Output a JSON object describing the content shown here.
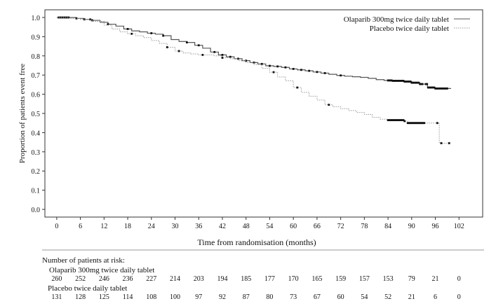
{
  "chart_data": {
    "type": "line",
    "title": "",
    "xlabel": "Time from randomisation (months)",
    "ylabel": "Proportion of patients event free",
    "xlim": [
      -3,
      108
    ],
    "ylim": [
      -0.04,
      1.04
    ],
    "xticks": [
      0,
      6,
      12,
      18,
      24,
      30,
      36,
      42,
      48,
      54,
      60,
      66,
      72,
      78,
      84,
      90,
      96,
      102
    ],
    "yticks": [
      0.0,
      0.1,
      0.2,
      0.3,
      0.4,
      0.5,
      0.6,
      0.7,
      0.8,
      0.9,
      1.0
    ],
    "ytick_labels": [
      "0.0",
      "0.1",
      "0.2",
      "0.3",
      "0.4",
      "0.5",
      "0.6",
      "0.7",
      "0.8",
      "0.9",
      "1.0"
    ],
    "legend_position": "top-right",
    "grid": false,
    "series": [
      {
        "name": "Olaparib 300mg twice daily tablet",
        "color": "#555555",
        "line_style": "solid",
        "points": [
          [
            0,
            1.0
          ],
          [
            3,
            1.0
          ],
          [
            5,
            0.995
          ],
          [
            7,
            0.99
          ],
          [
            9,
            0.985
          ],
          [
            11,
            0.975
          ],
          [
            13,
            0.965
          ],
          [
            15,
            0.955
          ],
          [
            17,
            0.94
          ],
          [
            19,
            0.93
          ],
          [
            21,
            0.925
          ],
          [
            23,
            0.918
          ],
          [
            25,
            0.913
          ],
          [
            27,
            0.905
          ],
          [
            29,
            0.885
          ],
          [
            31,
            0.875
          ],
          [
            33,
            0.87
          ],
          [
            35,
            0.855
          ],
          [
            37,
            0.84
          ],
          [
            39,
            0.82
          ],
          [
            41,
            0.805
          ],
          [
            43,
            0.795
          ],
          [
            45,
            0.785
          ],
          [
            47,
            0.775
          ],
          [
            49,
            0.765
          ],
          [
            51,
            0.758
          ],
          [
            53,
            0.748
          ],
          [
            55,
            0.745
          ],
          [
            57,
            0.74
          ],
          [
            59,
            0.732
          ],
          [
            61,
            0.727
          ],
          [
            63,
            0.722
          ],
          [
            65,
            0.716
          ],
          [
            67,
            0.71
          ],
          [
            69,
            0.704
          ],
          [
            71,
            0.698
          ],
          [
            73,
            0.694
          ],
          [
            75,
            0.691
          ],
          [
            77,
            0.688
          ],
          [
            79,
            0.683
          ],
          [
            81,
            0.676
          ],
          [
            83,
            0.672
          ],
          [
            85,
            0.67
          ],
          [
            88,
            0.666
          ],
          [
            90,
            0.66
          ],
          [
            92,
            0.653
          ],
          [
            94,
            0.635
          ],
          [
            96,
            0.63
          ],
          [
            98,
            0.63
          ],
          [
            100,
            0.63
          ]
        ],
        "censor_times": [
          0.5,
          1,
          1.5,
          2,
          2.5,
          3,
          5,
          7,
          8.5,
          9,
          13,
          18,
          24,
          27,
          33,
          36,
          40,
          42,
          44,
          46,
          48,
          50,
          52,
          54,
          56,
          58,
          60,
          62,
          64,
          66,
          68,
          72,
          84,
          84.3,
          84.6,
          84.9,
          85.2,
          85.5,
          85.8,
          86.1,
          86.4,
          86.7,
          87,
          87.3,
          87.6,
          87.9,
          88.2,
          88.5,
          88.8,
          89.1,
          89.4,
          89.7,
          90,
          90.3,
          90.6,
          90.9,
          91.2,
          91.5,
          91.8,
          92.1,
          92.4,
          92.7,
          93.6,
          93.9,
          94.2,
          94.5,
          94.8,
          95.1,
          95.4,
          95.7,
          96,
          96.3,
          96.6,
          96.9,
          97.2,
          97.5,
          97.8,
          98.1,
          98.4,
          98.7,
          99
        ]
      },
      {
        "name": "Placebo twice daily tablet",
        "color": "#9a9a9a",
        "line_style": "dotted",
        "points": [
          [
            0,
            1.0
          ],
          [
            3,
            0.995
          ],
          [
            6,
            0.99
          ],
          [
            9,
            0.98
          ],
          [
            12,
            0.96
          ],
          [
            14,
            0.94
          ],
          [
            16,
            0.925
          ],
          [
            18,
            0.915
          ],
          [
            20,
            0.905
          ],
          [
            22,
            0.895
          ],
          [
            24,
            0.88
          ],
          [
            26,
            0.865
          ],
          [
            28,
            0.845
          ],
          [
            30,
            0.825
          ],
          [
            32,
            0.815
          ],
          [
            34,
            0.81
          ],
          [
            36,
            0.805
          ],
          [
            38,
            0.805
          ],
          [
            40,
            0.8
          ],
          [
            42,
            0.79
          ],
          [
            44,
            0.785
          ],
          [
            46,
            0.775
          ],
          [
            48,
            0.765
          ],
          [
            50,
            0.755
          ],
          [
            52,
            0.735
          ],
          [
            54,
            0.715
          ],
          [
            56,
            0.69
          ],
          [
            58,
            0.67
          ],
          [
            60,
            0.635
          ],
          [
            62,
            0.61
          ],
          [
            64,
            0.59
          ],
          [
            66,
            0.57
          ],
          [
            68,
            0.545
          ],
          [
            70,
            0.535
          ],
          [
            72,
            0.525
          ],
          [
            74,
            0.515
          ],
          [
            76,
            0.505
          ],
          [
            78,
            0.495
          ],
          [
            80,
            0.48
          ],
          [
            82,
            0.47
          ],
          [
            84,
            0.465
          ],
          [
            88,
            0.46
          ],
          [
            89,
            0.45
          ],
          [
            96,
            0.45
          ],
          [
            97,
            0.345
          ],
          [
            99,
            0.345
          ]
        ],
        "censor_times": [
          19,
          28,
          31,
          37,
          42,
          55,
          61,
          69,
          84,
          84.3,
          84.6,
          84.9,
          85.2,
          85.5,
          85.8,
          86.1,
          86.4,
          86.7,
          87,
          87.3,
          87.6,
          87.9,
          88.2,
          89,
          89.3,
          89.6,
          89.9,
          90.2,
          90.5,
          90.8,
          91.1,
          91.4,
          91.7,
          92,
          92.3,
          92.6,
          92.9,
          93.2,
          96.5,
          97.5,
          99.5
        ]
      }
    ],
    "risk_table": {
      "title": "Number of patients at risk:",
      "times": [
        0,
        6,
        12,
        18,
        24,
        30,
        36,
        42,
        48,
        54,
        60,
        66,
        72,
        78,
        84,
        90,
        96,
        102
      ],
      "rows": [
        {
          "label": "Olaparib 300mg twice daily tablet",
          "values": [
            "260",
            "252",
            "246",
            "236",
            "227",
            "214",
            "203",
            "194",
            "185",
            "177",
            "170",
            "165",
            "159",
            "157",
            "153",
            "79",
            "21",
            "0"
          ]
        },
        {
          "label": "Placebo twice daily tablet",
          "values": [
            "131",
            "128",
            "125",
            "114",
            "108",
            "100",
            "97",
            "92",
            "87",
            "80",
            "73",
            "67",
            "60",
            "54",
            "52",
            "21",
            "6",
            "0"
          ]
        }
      ]
    }
  }
}
